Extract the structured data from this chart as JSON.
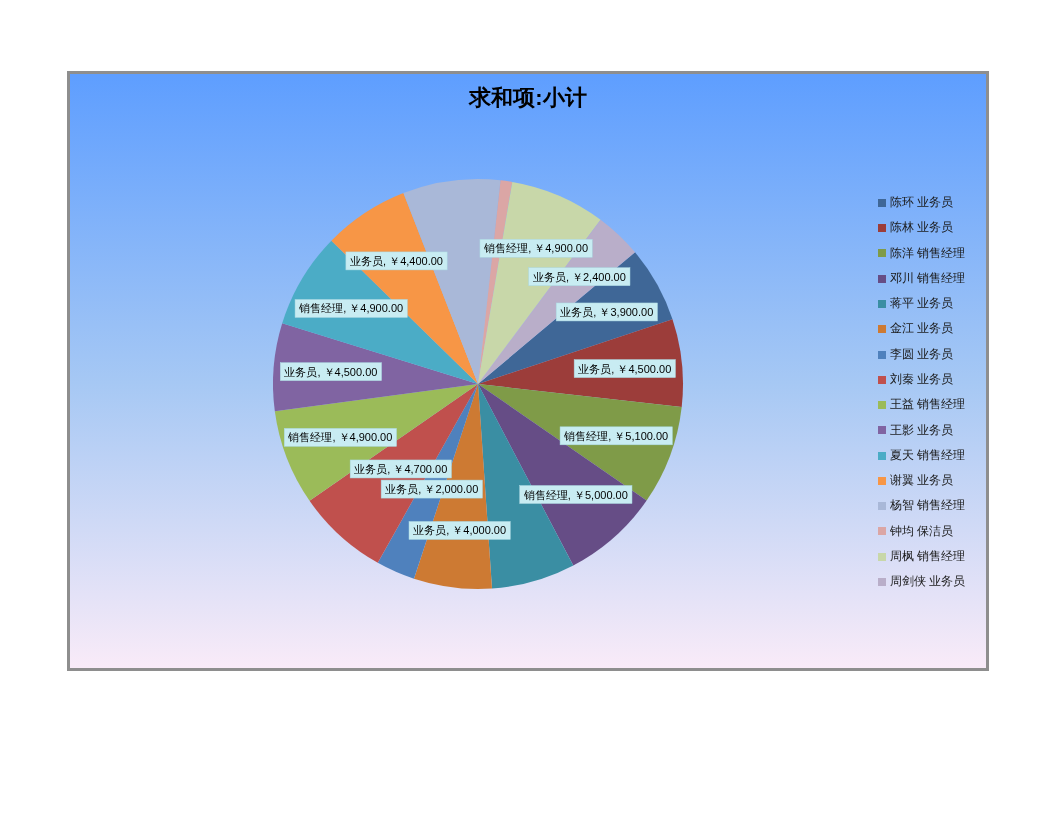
{
  "chart_data": {
    "type": "pie",
    "title": "求和项:小计",
    "categories": [
      "陈环 业务员",
      "陈林 业务员",
      "陈洋 销售经理",
      "邓川 销售经理",
      "蒋平 业务员",
      "金江 业务员",
      "李圆 业务员",
      "刘秦 业务员",
      "王益 销售经理",
      "王影 业务员",
      "夏天 销售经理",
      "谢翼 业务员",
      "杨智 销售经理",
      "钟均 保洁员",
      "周枫 销售经理",
      "周剑侠 业务员"
    ],
    "values": [
      3900,
      4500,
      5100,
      5000,
      4300,
      4000,
      2000,
      4700,
      4900,
      4500,
      4900,
      4400,
      5000,
      600,
      4900,
      2400
    ],
    "colors": [
      "#3f6797",
      "#9c3d3a",
      "#7f9b48",
      "#664d86",
      "#3a8ea3",
      "#cd7a33",
      "#4f81bd",
      "#c0504d",
      "#9bbb59",
      "#8064a2",
      "#4bacc6",
      "#f79646",
      "#a9b8d8",
      "#dba6a5",
      "#c8d7a9",
      "#b9aec9"
    ],
    "value_labels": [
      "业务员, ￥3,900.00",
      "业务员, ￥4,500.00",
      "销售经理, ￥5,100.00",
      "销售经理, ￥5,000.00",
      null,
      "业务员, ￥4,000.00",
      "业务员, ￥2,000.00",
      "业务员, ￥4,700.00",
      "销售经理, ￥4,900.00",
      "业务员, ￥4,500.00",
      "销售经理, ￥4,900.00",
      "业务员, ￥4,400.00",
      null,
      null,
      "销售经理, ￥4,900.00",
      "业务员, ￥2,400.00"
    ],
    "legend": "right"
  }
}
